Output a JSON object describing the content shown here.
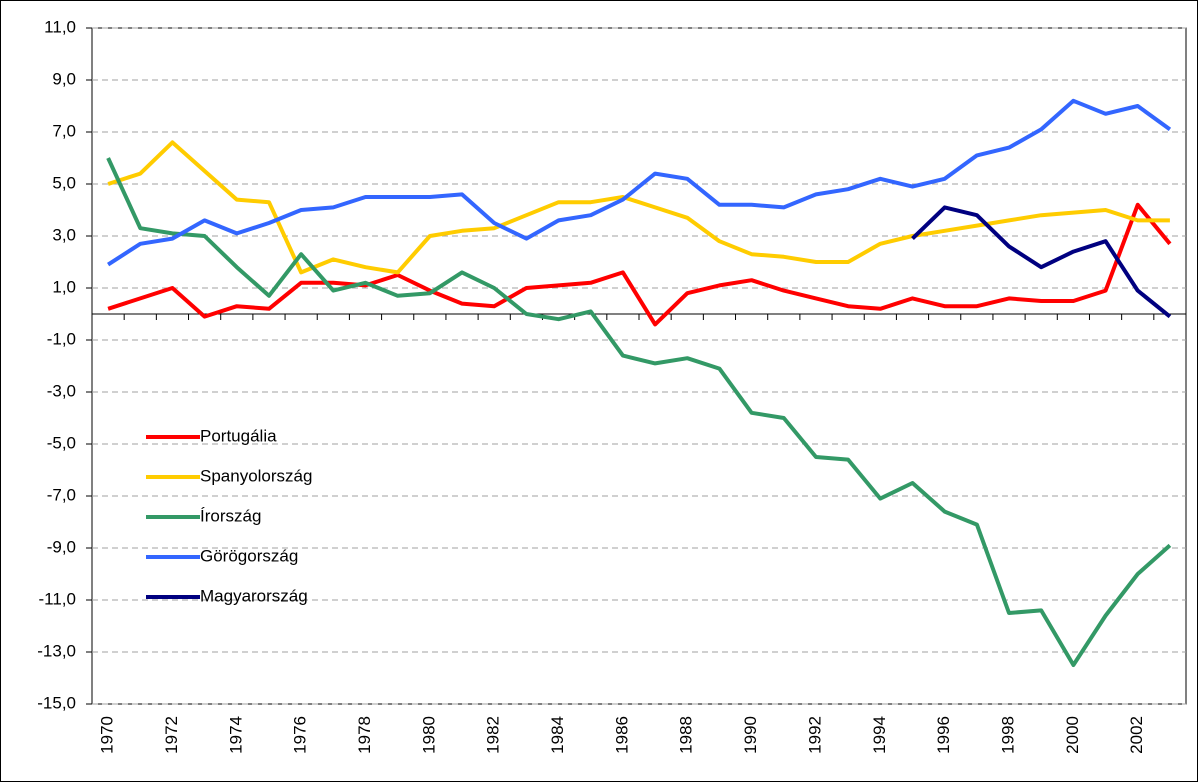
{
  "chart_data": {
    "type": "line",
    "categories": [
      "1970",
      null,
      "1972",
      null,
      "1974",
      null,
      "1976",
      null,
      "1978",
      null,
      "1980",
      null,
      "1982",
      null,
      "1984",
      null,
      "1986",
      null,
      "1988",
      null,
      "1990",
      null,
      "1992",
      null,
      "1994",
      null,
      "1996",
      null,
      "1998",
      null,
      "2000",
      null,
      "2002",
      null
    ],
    "series": [
      {
        "name": "Portugália",
        "color": "#ff0000",
        "values": [
          0.2,
          0.6,
          1.0,
          -0.1,
          0.3,
          0.2,
          1.2,
          1.2,
          1.1,
          1.5,
          0.9,
          0.4,
          0.3,
          1.0,
          1.1,
          1.2,
          1.6,
          -0.4,
          0.8,
          1.1,
          1.3,
          0.9,
          0.6,
          0.3,
          0.2,
          0.6,
          0.3,
          0.3,
          0.6,
          0.5,
          0.5,
          0.9,
          4.2,
          2.7
        ]
      },
      {
        "name": "Spanyolország",
        "color": "#ffcc00",
        "values": [
          5.0,
          5.4,
          6.6,
          5.5,
          4.4,
          4.3,
          1.6,
          2.1,
          1.8,
          1.6,
          3.0,
          3.2,
          3.3,
          3.8,
          4.3,
          4.3,
          4.5,
          4.1,
          3.7,
          2.8,
          2.3,
          2.2,
          2.0,
          2.0,
          2.7,
          3.0,
          3.2,
          3.4,
          3.6,
          3.8,
          3.9,
          4.0,
          3.6,
          3.6
        ]
      },
      {
        "name": "Írország",
        "color": "#339966",
        "values": [
          6.0,
          3.3,
          3.1,
          3.0,
          1.8,
          0.7,
          2.3,
          0.9,
          1.2,
          0.7,
          0.8,
          1.6,
          1.0,
          0.0,
          -0.2,
          0.1,
          -1.6,
          -1.9,
          -1.7,
          -2.1,
          -3.8,
          -4.0,
          -5.5,
          -5.6,
          -7.1,
          -6.5,
          -7.6,
          -8.1,
          -11.5,
          -11.4,
          -13.5,
          -11.6,
          -10.0,
          -8.9
        ]
      },
      {
        "name": "Görögország",
        "color": "#3366ff",
        "values": [
          1.9,
          2.7,
          2.9,
          3.6,
          3.1,
          3.5,
          4.0,
          4.1,
          4.5,
          4.5,
          4.5,
          4.6,
          3.5,
          2.9,
          3.6,
          3.8,
          4.4,
          5.4,
          5.2,
          4.2,
          4.2,
          4.1,
          4.6,
          4.8,
          5.2,
          4.9,
          5.2,
          6.1,
          6.4,
          7.1,
          8.2,
          7.7,
          8.0,
          7.1
        ]
      },
      {
        "name": "Magyarország",
        "color": "#000080",
        "values": [
          null,
          null,
          null,
          null,
          null,
          null,
          null,
          null,
          null,
          null,
          null,
          null,
          null,
          null,
          null,
          null,
          null,
          null,
          null,
          null,
          null,
          null,
          null,
          null,
          null,
          2.9,
          4.1,
          3.8,
          2.6,
          1.8,
          2.4,
          2.8,
          0.9,
          -0.1
        ]
      }
    ],
    "ylim": [
      -15,
      11
    ],
    "yticks": [
      {
        "value": -15,
        "label": "-15,0"
      },
      {
        "value": -13,
        "label": "-13,0"
      },
      {
        "value": -11,
        "label": "-11,0"
      },
      {
        "value": -9,
        "label": "-9,0"
      },
      {
        "value": -7,
        "label": "-7,0"
      },
      {
        "value": -5,
        "label": "-5,0"
      },
      {
        "value": -3,
        "label": "-3,0"
      },
      {
        "value": -1,
        "label": "-1,0"
      },
      {
        "value": 1,
        "label": "1,0"
      },
      {
        "value": 3,
        "label": "3,0"
      },
      {
        "value": 5,
        "label": "5,0"
      },
      {
        "value": 7,
        "label": "7,0"
      },
      {
        "value": 9,
        "label": "9,0"
      },
      {
        "value": 11,
        "label": "11,0"
      }
    ],
    "grid": true
  }
}
